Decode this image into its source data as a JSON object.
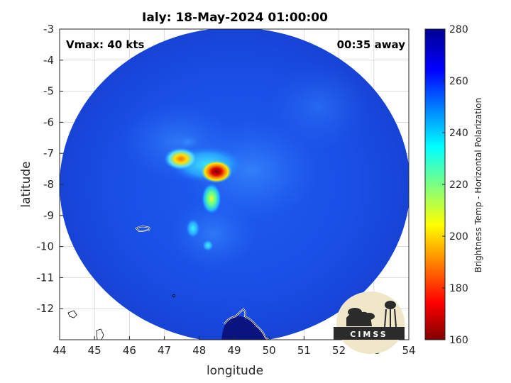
{
  "title": "Ialy: 18-May-2024 01:00:00",
  "annotations": {
    "vmax": "Vmax: 40 kts",
    "time_away": "00:35 away"
  },
  "axes": {
    "xlabel": "longitude",
    "ylabel": "latitude",
    "xlim": [
      44,
      54
    ],
    "ylim": [
      -13,
      -3
    ],
    "xticks": [
      44,
      45,
      46,
      47,
      48,
      49,
      50,
      51,
      52,
      53,
      54
    ],
    "yticks": [
      -3,
      -4,
      -5,
      -6,
      -7,
      -8,
      -9,
      -10,
      -11,
      -12
    ],
    "grid": true
  },
  "colorbar": {
    "label": "Brightness Temp - Horizontal Polarization",
    "range": [
      160,
      280
    ],
    "ticks": [
      280,
      260,
      240,
      220,
      200,
      180,
      160
    ],
    "colormap": "jet-reversed"
  },
  "logo": {
    "text": "CIMSS"
  },
  "map": {
    "swath_center": {
      "lon": 49.0,
      "lat": -8.3
    },
    "features": [
      {
        "name": "cold-core-main",
        "lon": 48.5,
        "lat": -7.6,
        "tb": 165
      },
      {
        "name": "cold-core-west",
        "lon": 47.4,
        "lat": -7.1,
        "tb": 190
      },
      {
        "name": "convective-band-south",
        "lon": 48.3,
        "lat": -8.6,
        "tb": 215
      },
      {
        "name": "convective-band-tail",
        "lon": 47.9,
        "lat": -9.7,
        "tb": 230
      }
    ],
    "colors": {
      "background_swath": "#1a4fe0",
      "land_outline": "#ffffff",
      "coast_dark": "#0a1480"
    }
  }
}
